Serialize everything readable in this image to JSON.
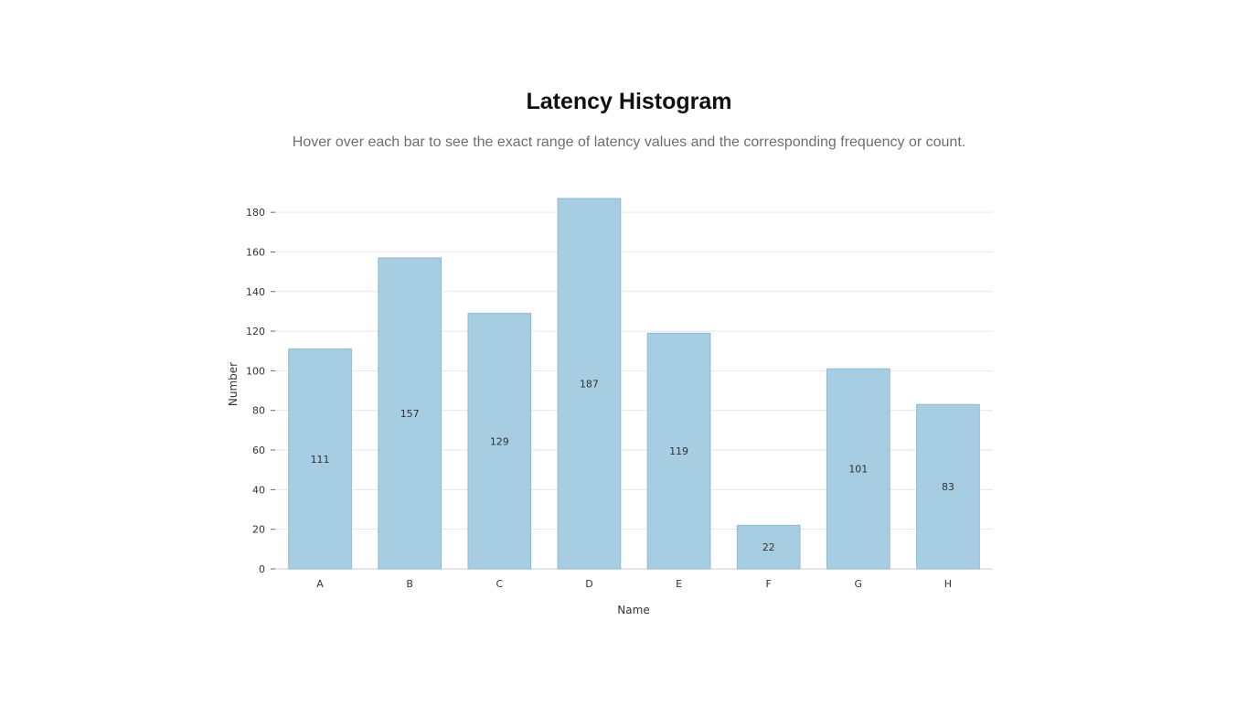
{
  "page": {
    "title": "Latency Histogram",
    "subtitle": "Hover over each bar to see the exact range of latency values and the corresponding frequency or count."
  },
  "chart_data": {
    "type": "bar",
    "title": "Latency Histogram",
    "subtitle": "Hover over each bar to see the exact range of latency values and the corresponding frequency or count.",
    "xlabel": "Name",
    "ylabel": "Number",
    "categories": [
      "A",
      "B",
      "C",
      "D",
      "E",
      "F",
      "G",
      "H"
    ],
    "values": [
      111,
      157,
      129,
      187,
      119,
      22,
      101,
      83
    ],
    "ylim": [
      0,
      187
    ],
    "yticks": [
      0,
      20,
      40,
      60,
      80,
      100,
      120,
      140,
      160,
      180
    ],
    "grid": true,
    "legend": "none",
    "data_labels": true,
    "colors": {
      "bar_fill": "#a6cde2",
      "bar_stroke": "#8fb9cf",
      "grid": "#e6e6e6",
      "axis": "#cccccc",
      "tick_text": "#333333",
      "label_text": "#333333"
    }
  }
}
